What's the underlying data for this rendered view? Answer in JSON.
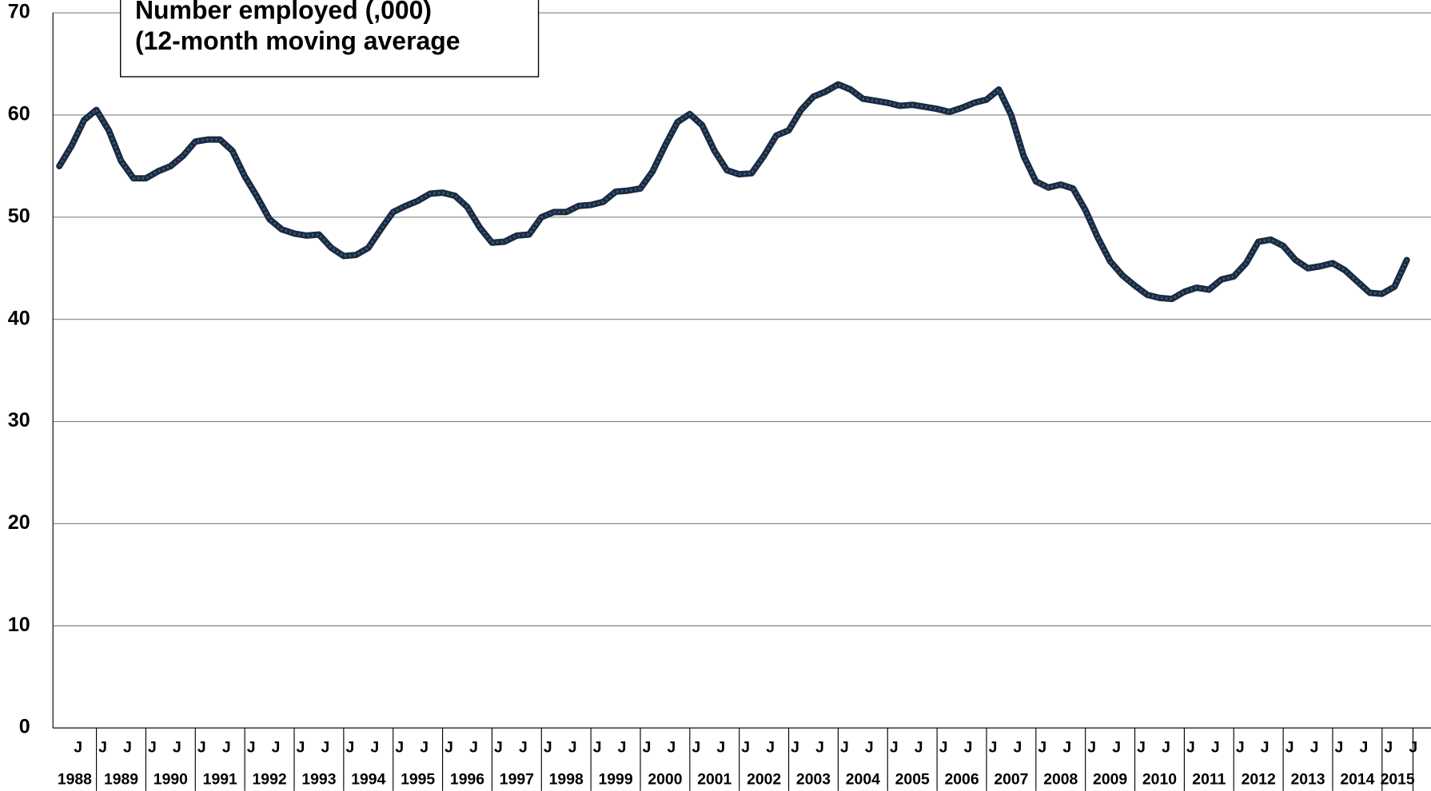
{
  "chart_data": {
    "type": "line",
    "title": "Number employed (,000)",
    "subtitle": "(12-month moving average",
    "categories": [
      null,
      "J",
      null,
      "J",
      null,
      "J",
      null,
      "J",
      null,
      "J",
      null,
      "J",
      null,
      "J",
      null,
      "J",
      null,
      "J",
      null,
      "J",
      null,
      "J",
      null,
      "J",
      null,
      "J",
      null,
      "J",
      null,
      "J",
      null,
      "J",
      null,
      "J",
      null,
      "J",
      null,
      "J",
      null,
      "J",
      null,
      "J",
      null,
      "J",
      null,
      "J",
      null,
      "J",
      null,
      "J",
      null,
      "J",
      null,
      "J",
      null,
      "J",
      null,
      "J",
      null,
      "J",
      null,
      "J",
      null,
      "J",
      null,
      "J",
      null,
      "J",
      null,
      "J",
      null,
      "J",
      null,
      "J",
      null,
      "J",
      null,
      "J",
      null,
      "J",
      null,
      "J",
      null,
      "J",
      null,
      "J",
      null,
      "J",
      null,
      "J",
      null,
      "J",
      null,
      "J",
      null,
      "J",
      null,
      "J",
      null,
      "J",
      null,
      "J",
      null,
      "J",
      null,
      "J",
      null,
      "J",
      null,
      "J"
    ],
    "year_categories": [
      "1988",
      "1988",
      "1988",
      "1989",
      "1989",
      "1989",
      "1989",
      "1990",
      "1990",
      "1990",
      "1990",
      "1991",
      "1991",
      "1991",
      "1991",
      "1992",
      "1992",
      "1992",
      "1992",
      "1993",
      "1993",
      "1993",
      "1993",
      "1994",
      "1994",
      "1994",
      "1994",
      "1995",
      "1995",
      "1995",
      "1995",
      "1996",
      "1996",
      "1996",
      "1996",
      "1997",
      "1997",
      "1997",
      "1997",
      "1998",
      "1998",
      "1998",
      "1998",
      "1999",
      "1999",
      "1999",
      "1999",
      "2000",
      "2000",
      "2000",
      "2000",
      "2001",
      "2001",
      "2001",
      "2001",
      "2002",
      "2002",
      "2002",
      "2002",
      "2003",
      "2003",
      "2003",
      "2003",
      "2004",
      "2004",
      "2004",
      "2004",
      "2005",
      "2005",
      "2005",
      "2005",
      "2006",
      "2006",
      "2006",
      "2006",
      "2007",
      "2007",
      "2007",
      "2007",
      "2008",
      "2008",
      "2008",
      "2008",
      "2009",
      "2009",
      "2009",
      "2009",
      "2010",
      "2010",
      "2010",
      "2010",
      "2011",
      "2011",
      "2011",
      "2011",
      "2012",
      "2012",
      "2012",
      "2012",
      "2013",
      "2013",
      "2013",
      "2013",
      "2014",
      "2014",
      "2014",
      "2014",
      "2015",
      "2015",
      "2015"
    ],
    "series": [
      {
        "name": "Number employed",
        "color": "#1a2b40",
        "values": [
          55,
          57,
          59.5,
          60.5,
          58.5,
          55.5,
          53.8,
          53.8,
          54.5,
          55,
          56,
          57.4,
          57.6,
          57.6,
          56.5,
          54,
          52,
          49.8,
          48.8,
          48.4,
          48.2,
          48.3,
          47,
          46.2,
          46.3,
          47,
          48.8,
          50.5,
          51.1,
          51.6,
          52.3,
          52.4,
          52.1,
          51,
          49,
          47.5,
          47.6,
          48.2,
          48.3,
          50,
          50.5,
          50.5,
          51.1,
          51.2,
          51.5,
          52.5,
          52.6,
          52.8,
          54.5,
          57,
          59.3,
          60.1,
          59,
          56.5,
          54.6,
          54.2,
          54.3,
          56,
          58,
          58.5,
          60.5,
          61.8,
          62.3,
          63,
          62.5,
          61.6,
          61.4,
          61.2,
          60.9,
          61,
          60.8,
          60.6,
          60.3,
          60.7,
          61.2,
          61.5,
          62.5,
          60,
          56,
          53.5,
          52.9,
          53.2,
          52.8,
          50.7,
          48,
          45.7,
          44.3,
          43.3,
          42.4,
          42.1,
          42,
          42.7,
          43.1,
          42.9,
          43.9,
          44.2,
          45.5,
          47.6,
          47.8,
          47.2,
          45.8,
          45,
          45.2,
          45.5,
          44.8,
          43.7,
          42.6,
          42.5,
          43.2,
          45.8
        ]
      }
    ],
    "ylim": [
      0,
      70
    ],
    "yticks": [
      0,
      10,
      20,
      30,
      40,
      50,
      60,
      70
    ],
    "grid": true
  }
}
